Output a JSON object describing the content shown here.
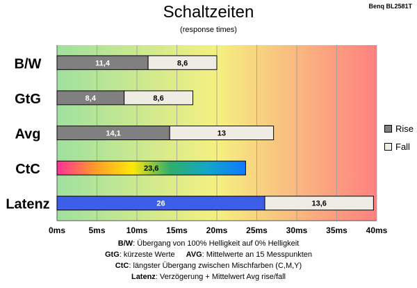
{
  "model_label": "Benq BL2581T",
  "chart_data": {
    "type": "bar",
    "orientation": "horizontal",
    "stacked": true,
    "title": "Schaltzeiten",
    "subtitle": "(response times)",
    "categories": [
      "B/W",
      "GtG",
      "Avg",
      "CtC",
      "Latenz"
    ],
    "series": [
      {
        "name": "Rise",
        "values": [
          11.4,
          8.4,
          14.1,
          23.6,
          26
        ],
        "labels": [
          "11,4",
          "8,4",
          "14,1",
          "23,6",
          "26"
        ]
      },
      {
        "name": "Fall",
        "values": [
          8.6,
          8.6,
          13,
          0,
          13.6
        ],
        "labels": [
          "8,6",
          "8,6",
          "13",
          "",
          "13,6"
        ]
      }
    ],
    "xlim": [
      0,
      40
    ],
    "x_ticks": [
      0,
      5,
      10,
      15,
      20,
      25,
      30,
      35,
      40
    ],
    "x_tick_labels": [
      "0ms",
      "5ms",
      "10ms",
      "15ms",
      "20ms",
      "25ms",
      "30ms",
      "35ms",
      "40ms"
    ],
    "grid": true,
    "legend_position": "right",
    "colors": {
      "rise": "#808080",
      "fall": "#efece4",
      "latenz_rise": "#3c5ee8",
      "bg_start": "#9fe09f",
      "bg_mid": "#f5f080",
      "bg_end": "#ff8080",
      "ctc_gradient": [
        "#ff2f9a",
        "#ff9a2a",
        "#ffe80a",
        "#2fae6a",
        "#12a6c8",
        "#1078ff"
      ]
    }
  },
  "legend": {
    "rise": "Rise",
    "fall": "Fall"
  },
  "notes": [
    {
      "bold": "B/W",
      "text": ": Übergang von 100% Helligkeit auf 0% Helligkeit"
    },
    {
      "bold": "GtG",
      "text": ": kürzeste Werte",
      "bold2": "AVG",
      "text2": ": Mittelwerte an 15 Messpunkten"
    },
    {
      "bold": "CtC",
      "text": ": längster Übergang zwischen Mischfarben (C,M,Y)"
    },
    {
      "bold": "Latenz",
      "text": ": Verzögerung + Mittelwert Avg rise/fall"
    }
  ]
}
